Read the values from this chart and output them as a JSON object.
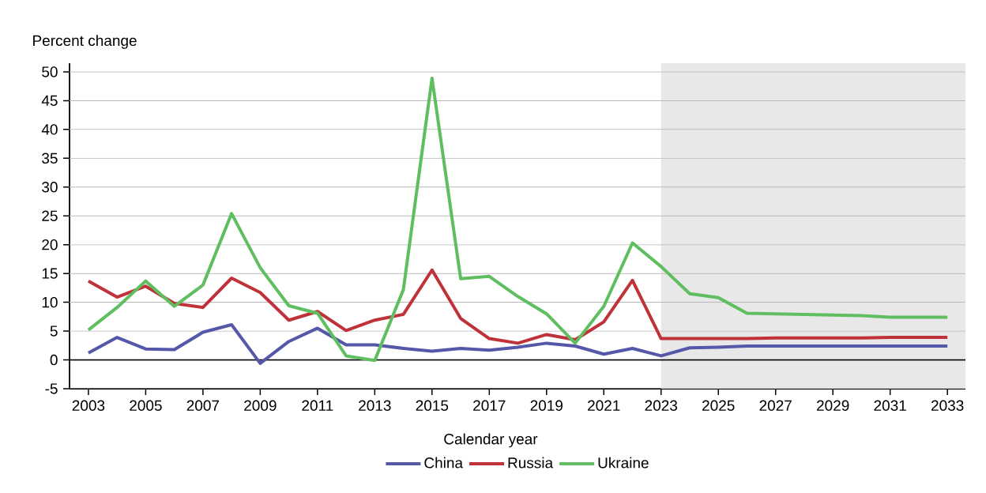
{
  "chart_data": {
    "type": "line",
    "xlabel": "Calendar year",
    "ylabel": "Percent change",
    "x": [
      2003,
      2004,
      2005,
      2006,
      2007,
      2008,
      2009,
      2010,
      2011,
      2012,
      2013,
      2014,
      2015,
      2016,
      2017,
      2018,
      2019,
      2020,
      2021,
      2022,
      2023,
      2024,
      2025,
      2026,
      2027,
      2028,
      2029,
      2030,
      2031,
      2032,
      2033
    ],
    "series": [
      {
        "name": "China",
        "color": "#5558a8",
        "values": [
          1.2,
          3.9,
          1.9,
          1.8,
          4.8,
          6.1,
          -0.6,
          3.2,
          5.5,
          2.6,
          2.6,
          2.0,
          1.5,
          2.0,
          1.7,
          2.2,
          2.9,
          2.4,
          1.0,
          2.0,
          0.7,
          2.1,
          2.2,
          2.4,
          2.4,
          2.4,
          2.4,
          2.4,
          2.4,
          2.4,
          2.4
        ]
      },
      {
        "name": "Russia",
        "color": "#c0323a",
        "values": [
          13.7,
          10.9,
          12.8,
          9.8,
          9.1,
          14.2,
          11.7,
          6.9,
          8.4,
          5.1,
          6.9,
          7.9,
          15.6,
          7.2,
          3.7,
          2.9,
          4.4,
          3.5,
          6.6,
          13.8,
          3.7,
          3.7,
          3.7,
          3.7,
          3.8,
          3.8,
          3.8,
          3.8,
          3.9,
          3.9,
          3.9
        ]
      },
      {
        "name": "Ukraine",
        "color": "#5fbe5f",
        "values": [
          5.2,
          9.1,
          13.7,
          9.3,
          13.0,
          25.4,
          16.0,
          9.4,
          8.1,
          0.7,
          -0.1,
          12.2,
          48.9,
          14.1,
          14.5,
          11.0,
          8.0,
          2.9,
          9.3,
          20.3,
          16.2,
          11.5,
          10.8,
          8.1,
          8.0,
          7.9,
          7.8,
          7.7,
          7.4,
          7.4,
          7.4
        ]
      }
    ],
    "xlim": [
      2002.34,
      2033.63
    ],
    "ylim": [
      -5,
      51.5
    ],
    "xticks": [
      2003,
      2005,
      2007,
      2009,
      2011,
      2013,
      2015,
      2017,
      2019,
      2021,
      2023,
      2025,
      2027,
      2029,
      2031,
      2033
    ],
    "yticks": [
      -5,
      0,
      5,
      10,
      15,
      20,
      25,
      30,
      35,
      40,
      45,
      50
    ],
    "grid": "y",
    "legend": "bottom",
    "marker": "none",
    "line_style": "solid",
    "ref_lines": [
      {
        "axis": "y",
        "value": 0,
        "color": "#000000"
      }
    ],
    "bands": [
      {
        "axis": "x",
        "from": 2023,
        "to": 2033.63,
        "color": "#e8e8e8"
      }
    ]
  }
}
